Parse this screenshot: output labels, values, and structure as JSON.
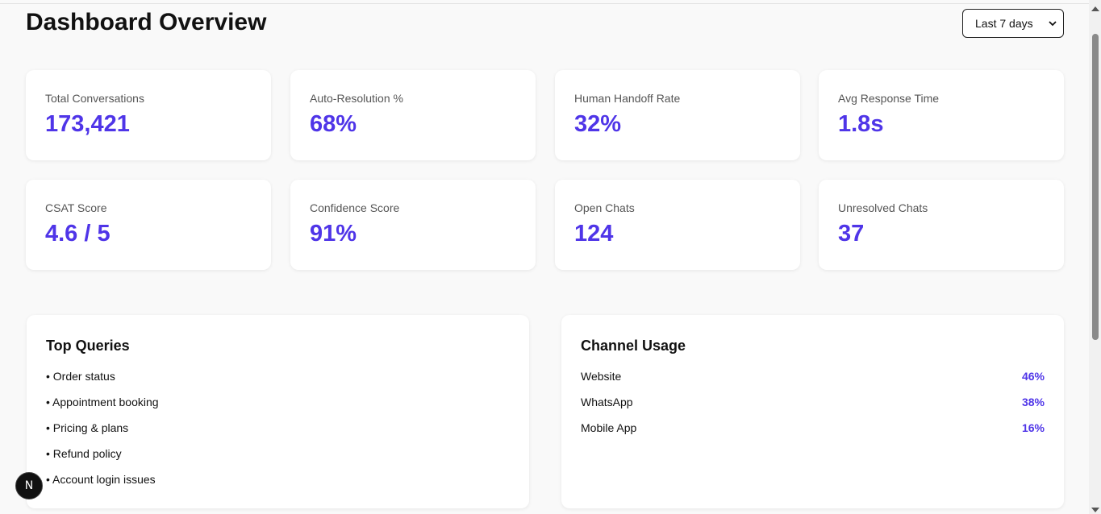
{
  "header": {
    "title": "Dashboard Overview",
    "range_selected": "Last 7 days"
  },
  "stats": [
    {
      "label": "Total Conversations",
      "value": "173,421"
    },
    {
      "label": "Auto-Resolution %",
      "value": "68%"
    },
    {
      "label": "Human Handoff Rate",
      "value": "32%"
    },
    {
      "label": "Avg Response Time",
      "value": "1.8s"
    },
    {
      "label": "CSAT Score",
      "value": "4.6 / 5"
    },
    {
      "label": "Confidence Score",
      "value": "91%"
    },
    {
      "label": "Open Chats",
      "value": "124"
    },
    {
      "label": "Unresolved Chats",
      "value": "37"
    }
  ],
  "top_queries": {
    "title": "Top Queries",
    "items": [
      "• Order status",
      "• Appointment booking",
      "• Pricing & plans",
      "• Refund policy",
      "• Account login issues"
    ]
  },
  "channel_usage": {
    "title": "Channel Usage",
    "items": [
      {
        "name": "Website",
        "pct": "46%"
      },
      {
        "name": "WhatsApp",
        "pct": "38%"
      },
      {
        "name": "Mobile App",
        "pct": "16%"
      }
    ]
  },
  "fab": {
    "icon": "nextjs-logo-icon",
    "glyph": "N"
  },
  "colors": {
    "accent": "#4f35e8",
    "background": "#f9f9f9",
    "card": "#ffffff"
  }
}
